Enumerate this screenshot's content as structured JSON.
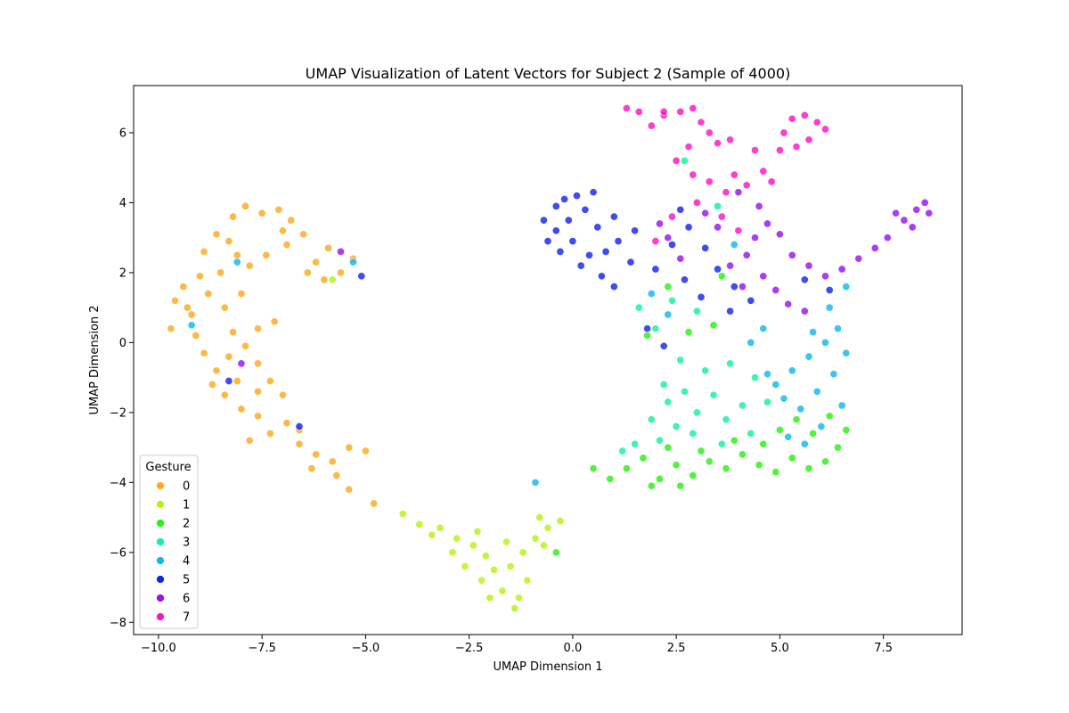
{
  "chart_data": {
    "type": "scatter",
    "title": "UMAP Visualization of Latent Vectors for Subject 2 (Sample of 4000)",
    "xlabel": "UMAP Dimension 1",
    "ylabel": "UMAP Dimension 2",
    "xlim": [
      -10.6,
      9.4
    ],
    "ylim": [
      -8.35,
      7.35
    ],
    "xticks": [
      -10.0,
      -7.5,
      -5.0,
      -2.5,
      0.0,
      2.5,
      5.0,
      7.5
    ],
    "xtick_labels": [
      "−10.0",
      "−7.5",
      "−5.0",
      "−2.5",
      "0.0",
      "2.5",
      "5.0",
      "7.5"
    ],
    "yticks": [
      -8,
      -6,
      -4,
      -2,
      0,
      2,
      4,
      6
    ],
    "ytick_labels": [
      "−8",
      "−6",
      "−4",
      "−2",
      "0",
      "2",
      "4",
      "6"
    ],
    "grid": false,
    "legend": {
      "title": "Gesture",
      "placement": "lower-left"
    },
    "series": [
      {
        "name": "0",
        "color": "#fdaa1c",
        "points": [
          [
            -9.4,
            1.6
          ],
          [
            -9.6,
            1.2
          ],
          [
            -9.2,
            0.8
          ],
          [
            -9.7,
            0.4
          ],
          [
            -9.0,
            1.9
          ],
          [
            -8.9,
            2.6
          ],
          [
            -8.6,
            3.1
          ],
          [
            -8.2,
            3.6
          ],
          [
            -7.9,
            3.9
          ],
          [
            -7.5,
            3.7
          ],
          [
            -7.1,
            3.8
          ],
          [
            -6.8,
            3.5
          ],
          [
            -6.5,
            3.1
          ],
          [
            -6.9,
            2.8
          ],
          [
            -7.4,
            2.5
          ],
          [
            -7.8,
            2.2
          ],
          [
            -8.1,
            2.5
          ],
          [
            -8.5,
            2.0
          ],
          [
            -8.8,
            1.4
          ],
          [
            -8.4,
            1.0
          ],
          [
            -9.1,
            0.2
          ],
          [
            -8.9,
            -0.3
          ],
          [
            -8.6,
            -0.8
          ],
          [
            -8.3,
            -0.4
          ],
          [
            -7.9,
            -0.1
          ],
          [
            -7.6,
            0.4
          ],
          [
            -7.2,
            0.6
          ],
          [
            -8.1,
            -1.1
          ],
          [
            -8.4,
            -1.5
          ],
          [
            -8.0,
            -1.9
          ],
          [
            -7.6,
            -1.4
          ],
          [
            -7.3,
            -1.1
          ],
          [
            -7.0,
            -1.5
          ],
          [
            -7.6,
            -2.1
          ],
          [
            -7.3,
            -2.6
          ],
          [
            -6.9,
            -2.3
          ],
          [
            -6.6,
            -2.9
          ],
          [
            -6.2,
            -3.2
          ],
          [
            -5.8,
            -3.4
          ],
          [
            -5.4,
            -3.0
          ],
          [
            -5.0,
            -3.1
          ],
          [
            -5.7,
            -3.8
          ],
          [
            -5.4,
            -4.2
          ],
          [
            -4.8,
            -4.6
          ],
          [
            -6.3,
            -3.6
          ],
          [
            -7.8,
            -2.8
          ],
          [
            -8.7,
            -1.2
          ],
          [
            -8.2,
            0.3
          ],
          [
            -6.2,
            2.3
          ],
          [
            -6.0,
            1.8
          ],
          [
            -5.6,
            2.0
          ],
          [
            -5.3,
            2.4
          ],
          [
            -5.9,
            2.7
          ],
          [
            -6.4,
            2.0
          ],
          [
            -7.0,
            3.2
          ],
          [
            -8.3,
            2.9
          ],
          [
            -9.3,
            1.0
          ],
          [
            -8.0,
            1.4
          ],
          [
            -7.6,
            -0.6
          ],
          [
            -6.6,
            -2.5
          ]
        ]
      },
      {
        "name": "1",
        "color": "#b8f214",
        "points": [
          [
            -4.1,
            -4.9
          ],
          [
            -3.7,
            -5.2
          ],
          [
            -3.2,
            -5.3
          ],
          [
            -2.8,
            -5.6
          ],
          [
            -2.4,
            -5.8
          ],
          [
            -2.1,
            -6.1
          ],
          [
            -1.9,
            -6.5
          ],
          [
            -2.2,
            -6.8
          ],
          [
            -1.7,
            -7.1
          ],
          [
            -1.3,
            -7.3
          ],
          [
            -1.1,
            -6.8
          ],
          [
            -1.5,
            -6.4
          ],
          [
            -1.2,
            -6.0
          ],
          [
            -0.9,
            -5.6
          ],
          [
            -0.6,
            -5.3
          ],
          [
            -0.3,
            -5.1
          ],
          [
            -0.8,
            -5.0
          ],
          [
            -1.6,
            -5.7
          ],
          [
            -2.6,
            -6.4
          ],
          [
            -2.0,
            -7.3
          ],
          [
            -1.4,
            -7.6
          ],
          [
            -0.7,
            -5.8
          ],
          [
            -3.4,
            -5.5
          ],
          [
            -2.9,
            -6.0
          ],
          [
            -5.8,
            1.8
          ],
          [
            -2.3,
            -5.4
          ]
        ]
      },
      {
        "name": "2",
        "color": "#2af112",
        "points": [
          [
            0.9,
            -3.9
          ],
          [
            1.3,
            -3.6
          ],
          [
            1.7,
            -3.3
          ],
          [
            2.1,
            -3.9
          ],
          [
            2.5,
            -3.5
          ],
          [
            2.9,
            -3.8
          ],
          [
            3.3,
            -3.4
          ],
          [
            3.7,
            -3.6
          ],
          [
            4.1,
            -3.2
          ],
          [
            4.5,
            -3.5
          ],
          [
            4.9,
            -3.7
          ],
          [
            5.3,
            -3.3
          ],
          [
            5.7,
            -3.6
          ],
          [
            6.1,
            -3.4
          ],
          [
            6.4,
            -3.0
          ],
          [
            6.6,
            -2.5
          ],
          [
            6.2,
            -2.1
          ],
          [
            5.8,
            -2.6
          ],
          [
            5.4,
            -2.2
          ],
          [
            5.0,
            -2.5
          ],
          [
            4.6,
            -2.9
          ],
          [
            3.9,
            -2.8
          ],
          [
            3.1,
            -3.1
          ],
          [
            2.3,
            -3.0
          ],
          [
            1.9,
            -4.1
          ],
          [
            2.6,
            -4.1
          ],
          [
            -0.4,
            -6.0
          ],
          [
            0.5,
            -3.6
          ],
          [
            2.8,
            0.3
          ],
          [
            3.4,
            0.5
          ],
          [
            1.8,
            0.2
          ],
          [
            2.3,
            1.6
          ],
          [
            3.6,
            1.9
          ]
        ]
      },
      {
        "name": "3",
        "color": "#12f39b",
        "points": [
          [
            1.9,
            -2.2
          ],
          [
            2.3,
            -1.7
          ],
          [
            2.7,
            -1.4
          ],
          [
            2.5,
            -2.4
          ],
          [
            2.1,
            -2.8
          ],
          [
            3.0,
            -2.0
          ],
          [
            3.4,
            -1.5
          ],
          [
            3.7,
            -2.2
          ],
          [
            4.1,
            -1.8
          ],
          [
            4.3,
            -2.6
          ],
          [
            3.6,
            -2.9
          ],
          [
            2.9,
            -2.6
          ],
          [
            2.2,
            -1.2
          ],
          [
            1.5,
            -2.9
          ],
          [
            1.2,
            -3.1
          ],
          [
            3.2,
            -0.8
          ],
          [
            3.8,
            -0.6
          ],
          [
            4.4,
            -1.0
          ],
          [
            4.7,
            -1.7
          ],
          [
            2.6,
            -0.5
          ],
          [
            2.0,
            0.4
          ],
          [
            3.0,
            0.9
          ],
          [
            2.4,
            1.2
          ],
          [
            1.6,
            1.0
          ],
          [
            2.7,
            5.2
          ],
          [
            3.5,
            3.9
          ]
        ]
      },
      {
        "name": "4",
        "color": "#11b7ef",
        "points": [
          [
            4.9,
            -1.2
          ],
          [
            5.3,
            -0.8
          ],
          [
            5.7,
            -0.4
          ],
          [
            6.1,
            0.0
          ],
          [
            6.4,
            0.4
          ],
          [
            6.6,
            -0.3
          ],
          [
            6.3,
            -0.9
          ],
          [
            5.9,
            -1.4
          ],
          [
            5.5,
            -1.9
          ],
          [
            5.1,
            -1.6
          ],
          [
            4.7,
            -0.9
          ],
          [
            5.6,
            -2.9
          ],
          [
            6.0,
            -2.4
          ],
          [
            6.5,
            -1.8
          ],
          [
            5.2,
            -2.7
          ],
          [
            5.8,
            0.3
          ],
          [
            6.2,
            1.0
          ],
          [
            6.6,
            1.6
          ],
          [
            4.3,
            0.0
          ],
          [
            4.6,
            0.4
          ],
          [
            1.9,
            1.4
          ],
          [
            2.3,
            0.8
          ],
          [
            3.9,
            2.8
          ],
          [
            -0.9,
            -4.0
          ],
          [
            -5.3,
            2.3
          ],
          [
            -9.2,
            0.5
          ],
          [
            -8.1,
            2.3
          ]
        ]
      },
      {
        "name": "5",
        "color": "#1424ee",
        "points": [
          [
            -0.7,
            3.5
          ],
          [
            -0.4,
            3.9
          ],
          [
            -0.2,
            4.1
          ],
          [
            0.1,
            4.2
          ],
          [
            0.3,
            3.8
          ],
          [
            -0.1,
            3.5
          ],
          [
            -0.4,
            3.2
          ],
          [
            -0.6,
            2.9
          ],
          [
            -0.3,
            2.6
          ],
          [
            0.0,
            2.9
          ],
          [
            0.4,
            2.5
          ],
          [
            0.8,
            2.6
          ],
          [
            1.1,
            2.9
          ],
          [
            0.6,
            3.3
          ],
          [
            1.0,
            3.6
          ],
          [
            0.2,
            2.2
          ],
          [
            0.7,
            1.9
          ],
          [
            1.0,
            1.6
          ],
          [
            1.4,
            2.3
          ],
          [
            2.0,
            2.1
          ],
          [
            2.4,
            2.8
          ],
          [
            2.8,
            3.3
          ],
          [
            3.2,
            2.7
          ],
          [
            3.5,
            2.1
          ],
          [
            3.9,
            1.6
          ],
          [
            4.3,
            1.2
          ],
          [
            3.8,
            0.9
          ],
          [
            3.1,
            1.3
          ],
          [
            2.7,
            1.8
          ],
          [
            1.5,
            3.2
          ],
          [
            1.8,
            0.4
          ],
          [
            2.2,
            -0.1
          ],
          [
            5.6,
            1.8
          ],
          [
            6.2,
            1.5
          ],
          [
            0.5,
            4.3
          ],
          [
            2.6,
            3.8
          ],
          [
            -8.3,
            -1.1
          ],
          [
            -5.1,
            1.9
          ],
          [
            -6.6,
            -2.4
          ]
        ]
      },
      {
        "name": "6",
        "color": "#9713f1",
        "points": [
          [
            8.0,
            3.5
          ],
          [
            8.3,
            3.8
          ],
          [
            8.5,
            4.0
          ],
          [
            8.2,
            3.3
          ],
          [
            7.8,
            3.7
          ],
          [
            8.6,
            3.7
          ],
          [
            7.6,
            3.0
          ],
          [
            7.3,
            2.7
          ],
          [
            6.9,
            2.4
          ],
          [
            6.5,
            2.1
          ],
          [
            6.1,
            1.9
          ],
          [
            5.7,
            2.2
          ],
          [
            5.3,
            2.5
          ],
          [
            5.0,
            3.1
          ],
          [
            4.7,
            3.4
          ],
          [
            4.4,
            3.0
          ],
          [
            4.2,
            2.5
          ],
          [
            4.6,
            1.9
          ],
          [
            4.9,
            1.5
          ],
          [
            5.2,
            1.1
          ],
          [
            5.6,
            0.9
          ],
          [
            4.1,
            1.6
          ],
          [
            3.8,
            2.2
          ],
          [
            3.5,
            3.3
          ],
          [
            3.2,
            3.7
          ],
          [
            2.6,
            2.4
          ],
          [
            2.3,
            3.0
          ],
          [
            2.1,
            3.4
          ],
          [
            4.0,
            4.3
          ],
          [
            4.5,
            3.9
          ],
          [
            -5.6,
            2.6
          ],
          [
            -8.0,
            -0.6
          ]
        ]
      },
      {
        "name": "7",
        "color": "#fb15c1",
        "points": [
          [
            1.3,
            6.7
          ],
          [
            1.6,
            6.6
          ],
          [
            1.9,
            6.2
          ],
          [
            2.2,
            6.5
          ],
          [
            2.6,
            6.6
          ],
          [
            2.9,
            6.7
          ],
          [
            3.1,
            6.3
          ],
          [
            3.3,
            6.0
          ],
          [
            3.5,
            5.7
          ],
          [
            3.8,
            5.8
          ],
          [
            2.8,
            5.6
          ],
          [
            2.5,
            5.2
          ],
          [
            2.9,
            4.8
          ],
          [
            3.3,
            4.6
          ],
          [
            3.7,
            4.3
          ],
          [
            3.9,
            4.8
          ],
          [
            4.2,
            4.5
          ],
          [
            4.6,
            4.9
          ],
          [
            4.8,
            4.6
          ],
          [
            5.0,
            5.5
          ],
          [
            5.1,
            6.0
          ],
          [
            5.3,
            6.4
          ],
          [
            5.6,
            6.5
          ],
          [
            5.9,
            6.3
          ],
          [
            6.1,
            6.1
          ],
          [
            5.7,
            5.8
          ],
          [
            5.4,
            5.6
          ],
          [
            4.4,
            5.5
          ],
          [
            3.0,
            4.0
          ],
          [
            2.4,
            3.6
          ],
          [
            2.0,
            2.9
          ],
          [
            3.6,
            3.6
          ],
          [
            4.0,
            3.2
          ],
          [
            2.2,
            6.6
          ]
        ]
      }
    ]
  }
}
